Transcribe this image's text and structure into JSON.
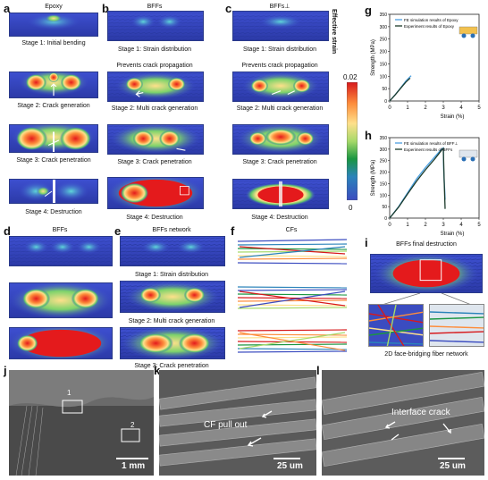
{
  "panels": {
    "a": {
      "letter": "a",
      "title": "Epoxy",
      "stages": [
        "Stage 1: Initial bending",
        "Stage 2: Crack generation",
        "Stage 3: Crack penetration",
        "Stage 4: Destruction"
      ]
    },
    "b": {
      "letter": "b",
      "title": "BFFs",
      "stages": [
        "Stage 1: Strain distribution",
        "Stage 2: Multi crack generation",
        "Stage 3: Crack penetration",
        "Stage 4: Destruction"
      ],
      "note": "Prevents crack propagation"
    },
    "c": {
      "letter": "c",
      "title": "BFFs⊥",
      "stages": [
        "Stage 1: Strain distribution",
        "Stage 2: Multi crack generation",
        "Stage 3: Crack penetration",
        "Stage 4: Destruction"
      ],
      "note": "Prevents crack propagation"
    },
    "d": {
      "letter": "d",
      "title": "BFFs"
    },
    "e": {
      "letter": "e",
      "title": "BFFs network",
      "stages": [
        "Stage 1: Strain distribution",
        "Stage 2: Multi crack generation",
        "Stage 3: Crack penetration"
      ]
    },
    "f": {
      "letter": "f",
      "title": "CFs"
    },
    "i": {
      "letter": "i",
      "title": "BFFs final destruction",
      "caption": "2D face-bridging fiber network"
    },
    "j": {
      "letter": "j",
      "scale": "1 mm",
      "box1": "1",
      "box2": "2"
    },
    "k": {
      "letter": "k",
      "scale": "25 um",
      "annotation": "CF pull out"
    },
    "l": {
      "letter": "l",
      "scale": "25 um",
      "annotation": "Interface crack"
    }
  },
  "colorbar": {
    "label": "Effective strain",
    "max": "0.02",
    "min": "0",
    "colors": [
      "#d7191c",
      "#fd8d3c",
      "#fee08b",
      "#a6d96a",
      "#1a9641",
      "#2b83ba",
      "#3b4cc0"
    ]
  },
  "chart_data": [
    {
      "panel": "g",
      "type": "line",
      "xlabel": "Strain (%)",
      "ylabel": "Strength (MPa)",
      "xlim": [
        0,
        5
      ],
      "ylim": [
        0,
        350
      ],
      "xticks": [
        "0",
        "1",
        "2",
        "3",
        "4",
        "5"
      ],
      "yticks": [
        "0",
        "50",
        "100",
        "150",
        "200",
        "250",
        "300",
        "350"
      ],
      "legend": [
        "FE simulation results of Epoxy",
        "Experiment results of Epoxy"
      ],
      "series": [
        {
          "name": "FE simulation results of Epoxy",
          "color": "#4a9fe0",
          "x": [
            0,
            0.3,
            0.6,
            0.9,
            1.1,
            1.2
          ],
          "y": [
            0,
            25,
            52,
            80,
            95,
            102
          ]
        },
        {
          "name": "Experiment results of Epoxy",
          "color": "#1b3a2a",
          "x": [
            0,
            0.3,
            0.6,
            0.9,
            1.1,
            1.15
          ],
          "y": [
            0,
            24,
            50,
            76,
            90,
            92
          ]
        }
      ]
    },
    {
      "panel": "h",
      "type": "line",
      "xlabel": "Strain (%)",
      "ylabel": "Strength (MPa)",
      "xlim": [
        0,
        5
      ],
      "ylim": [
        0,
        350
      ],
      "xticks": [
        "0",
        "1",
        "2",
        "3",
        "4",
        "5"
      ],
      "yticks": [
        "0",
        "50",
        "100",
        "150",
        "200",
        "250",
        "300",
        "350"
      ],
      "legend": [
        "FE simulation results of BFF⊥",
        "Experiment results of BFFs"
      ],
      "series": [
        {
          "name": "FE simulation results of BFF⊥",
          "color": "#4a9fe0",
          "x": [
            0,
            0.5,
            1.0,
            1.5,
            2.0,
            2.5,
            2.9,
            3.0,
            3.02,
            3.05,
            3.08,
            3.1
          ],
          "y": [
            0,
            50,
            110,
            170,
            220,
            265,
            300,
            305,
            210,
            160,
            120,
            80
          ]
        },
        {
          "name": "Experiment results of BFFs",
          "color": "#1b3a2a",
          "x": [
            0,
            0.5,
            1.0,
            1.5,
            2.0,
            2.5,
            2.8,
            2.95,
            3.0,
            3.05,
            3.1
          ],
          "y": [
            0,
            48,
            105,
            160,
            210,
            255,
            285,
            300,
            303,
            160,
            40
          ]
        }
      ]
    }
  ]
}
